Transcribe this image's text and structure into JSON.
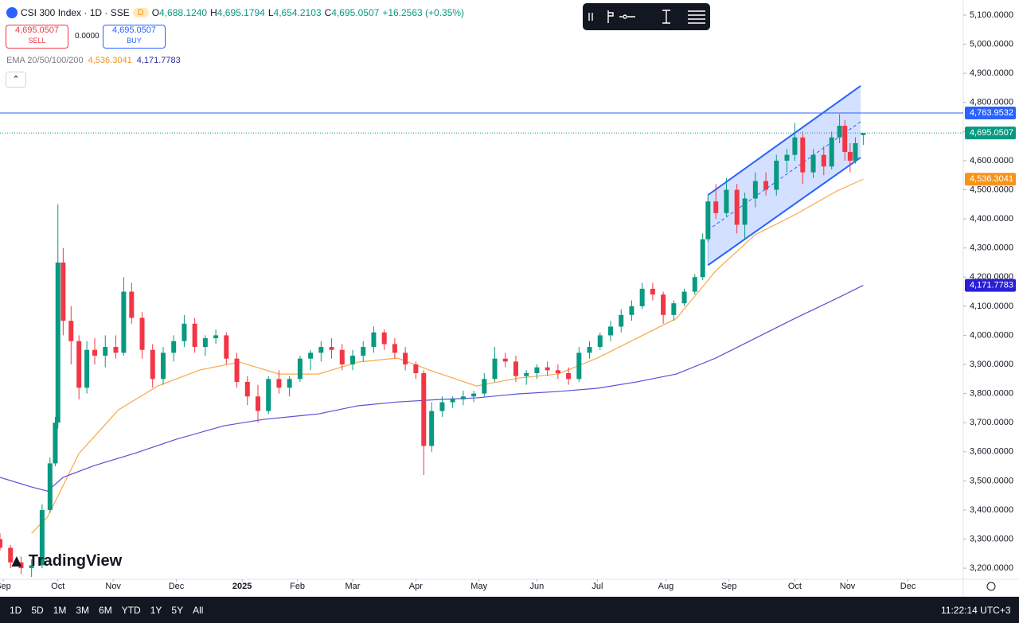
{
  "header": {
    "title": "CSI 300 Index · 1D · SSE",
    "badge": "D",
    "ohlc": [
      {
        "k": "O",
        "v": "4,688.1240"
      },
      {
        "k": "H",
        "v": "4,695.1794"
      },
      {
        "k": "L",
        "v": "4,654.2103"
      },
      {
        "k": "C",
        "v": "4,695.0507"
      }
    ],
    "change": "+16.2563 (+0.35%)"
  },
  "trade": {
    "sell_price": "4,695.0507",
    "sell": "SELL",
    "spread": "0.0000",
    "buy_price": "4,695.0507",
    "buy": "BUY"
  },
  "indicator": {
    "name": "EMA 20/50/100/200",
    "values": [
      {
        "text": "4,536.3041",
        "color": "#f7931a"
      },
      {
        "text": "4,171.7783",
        "color": "#2a2e9c"
      }
    ]
  },
  "logo": "TradingView",
  "toolbar": {
    "ranges": [
      "1D",
      "5D",
      "1M",
      "3M",
      "6M",
      "YTD",
      "1Y",
      "5Y",
      "All"
    ],
    "clock": "11:22:14 UTC+3"
  },
  "chart_data": {
    "type": "candlestick",
    "up_color": "#089981",
    "down_color": "#f23645",
    "xlim": [
      0,
      366
    ],
    "ylim": [
      3162,
      5152
    ],
    "xticks": [
      {
        "value": 1.2,
        "label": "Sep"
      },
      {
        "value": 22,
        "label": "Oct"
      },
      {
        "value": 43,
        "label": "Nov"
      },
      {
        "value": 67,
        "label": "Dec"
      },
      {
        "value": 92,
        "label": "2025"
      },
      {
        "value": 113,
        "label": "Feb"
      },
      {
        "value": 134,
        "label": "Mar"
      },
      {
        "value": 158,
        "label": "Apr"
      },
      {
        "value": 182,
        "label": "May"
      },
      {
        "value": 204,
        "label": "Jun"
      },
      {
        "value": 227,
        "label": "Jul"
      },
      {
        "value": 253,
        "label": "Aug"
      },
      {
        "value": 277,
        "label": "Sep"
      },
      {
        "value": 302,
        "label": "Oct"
      },
      {
        "value": 322,
        "label": "Nov"
      },
      {
        "value": 345,
        "label": "Dec"
      }
    ],
    "yticks": [
      {
        "value": 3200,
        "label": "3,200.0000"
      },
      {
        "value": 3300,
        "label": "3,300.0000"
      },
      {
        "value": 3400,
        "label": "3,400.0000"
      },
      {
        "value": 3500,
        "label": "3,500.0000"
      },
      {
        "value": 3600,
        "label": "3,600.0000"
      },
      {
        "value": 3700,
        "label": "3,700.0000"
      },
      {
        "value": 3800,
        "label": "3,800.0000"
      },
      {
        "value": 3900,
        "label": "3,900.0000"
      },
      {
        "value": 4000,
        "label": "4,000.0000"
      },
      {
        "value": 4100,
        "label": "4,100.0000"
      },
      {
        "value": 4200,
        "label": "4,200.0000"
      },
      {
        "value": 4300,
        "label": "4,300.0000"
      },
      {
        "value": 4400,
        "label": "4,400.0000"
      },
      {
        "value": 4500,
        "label": "4,500.0000"
      },
      {
        "value": 4600,
        "label": "4,600.0000"
      },
      {
        "value": 4700,
        "label": "4,700.0000"
      },
      {
        "value": 4800,
        "label": "4,800.0000"
      },
      {
        "value": 4900,
        "label": "4,900.0000"
      },
      {
        "value": 5000,
        "label": "5,000.0000"
      },
      {
        "value": 5100,
        "label": "5,100.0000"
      }
    ],
    "candles": [
      [
        0,
        3300,
        3320,
        3260,
        3270
      ],
      [
        4,
        3270,
        3280,
        3200,
        3220
      ],
      [
        8,
        3220,
        3240,
        3180,
        3200
      ],
      [
        12,
        3200,
        3230,
        3170,
        3210
      ],
      [
        16,
        3210,
        3420,
        3200,
        3400
      ],
      [
        19,
        3400,
        3580,
        3390,
        3560
      ],
      [
        21,
        3560,
        3720,
        3550,
        3700
      ],
      [
        22,
        3700,
        4450,
        3680,
        4250
      ],
      [
        24,
        4250,
        4300,
        4000,
        4050
      ],
      [
        27,
        4050,
        4100,
        3900,
        3980
      ],
      [
        30,
        3980,
        4000,
        3780,
        3820
      ],
      [
        33,
        3820,
        3980,
        3800,
        3950
      ],
      [
        36,
        3950,
        3990,
        3900,
        3930
      ],
      [
        40,
        3930,
        4000,
        3890,
        3960
      ],
      [
        44,
        3960,
        4000,
        3920,
        3940
      ],
      [
        47,
        3940,
        4200,
        3930,
        4150
      ],
      [
        50,
        4150,
        4180,
        4040,
        4060
      ],
      [
        54,
        4060,
        4080,
        3920,
        3950
      ],
      [
        58,
        3950,
        3970,
        3820,
        3850
      ],
      [
        62,
        3850,
        3960,
        3830,
        3940
      ],
      [
        66,
        3940,
        4000,
        3910,
        3980
      ],
      [
        70,
        3980,
        4070,
        3960,
        4040
      ],
      [
        74,
        4040,
        4060,
        3940,
        3960
      ],
      [
        78,
        3960,
        4000,
        3930,
        3990
      ],
      [
        82,
        3990,
        4020,
        3970,
        4000
      ],
      [
        86,
        4000,
        4010,
        3900,
        3920
      ],
      [
        90,
        3920,
        3940,
        3820,
        3840
      ],
      [
        94,
        3840,
        3860,
        3760,
        3790
      ],
      [
        98,
        3790,
        3830,
        3700,
        3740
      ],
      [
        102,
        3740,
        3860,
        3730,
        3850
      ],
      [
        106,
        3850,
        3880,
        3800,
        3820
      ],
      [
        110,
        3820,
        3860,
        3790,
        3850
      ],
      [
        114,
        3850,
        3930,
        3840,
        3920
      ],
      [
        118,
        3920,
        3950,
        3880,
        3940
      ],
      [
        122,
        3940,
        3980,
        3910,
        3960
      ],
      [
        126,
        3960,
        3990,
        3920,
        3950
      ],
      [
        130,
        3950,
        3970,
        3880,
        3900
      ],
      [
        134,
        3900,
        3950,
        3880,
        3930
      ],
      [
        138,
        3930,
        3980,
        3910,
        3960
      ],
      [
        142,
        3960,
        4030,
        3940,
        4010
      ],
      [
        146,
        4010,
        4020,
        3950,
        3970
      ],
      [
        150,
        3970,
        3990,
        3920,
        3940
      ],
      [
        154,
        3940,
        3960,
        3880,
        3900
      ],
      [
        158,
        3900,
        3910,
        3850,
        3870
      ],
      [
        161,
        3870,
        3880,
        3520,
        3620
      ],
      [
        164,
        3620,
        3770,
        3600,
        3740
      ],
      [
        168,
        3740,
        3790,
        3720,
        3770
      ],
      [
        172,
        3770,
        3790,
        3750,
        3780
      ],
      [
        176,
        3780,
        3810,
        3760,
        3790
      ],
      [
        180,
        3790,
        3810,
        3770,
        3800
      ],
      [
        184,
        3800,
        3870,
        3790,
        3850
      ],
      [
        188,
        3850,
        3960,
        3840,
        3920
      ],
      [
        192,
        3920,
        3940,
        3890,
        3910
      ],
      [
        196,
        3910,
        3930,
        3840,
        3860
      ],
      [
        200,
        3860,
        3880,
        3830,
        3870
      ],
      [
        204,
        3870,
        3900,
        3850,
        3890
      ],
      [
        208,
        3890,
        3910,
        3860,
        3880
      ],
      [
        212,
        3880,
        3900,
        3850,
        3870
      ],
      [
        216,
        3870,
        3890,
        3830,
        3850
      ],
      [
        220,
        3850,
        3960,
        3840,
        3940
      ],
      [
        224,
        3940,
        3980,
        3920,
        3960
      ],
      [
        228,
        3960,
        4010,
        3950,
        4000
      ],
      [
        232,
        4000,
        4050,
        3980,
        4030
      ],
      [
        236,
        4030,
        4090,
        4010,
        4070
      ],
      [
        240,
        4070,
        4120,
        4050,
        4100
      ],
      [
        244,
        4100,
        4180,
        4090,
        4160
      ],
      [
        248,
        4160,
        4180,
        4120,
        4140
      ],
      [
        252,
        4140,
        4150,
        4040,
        4070
      ],
      [
        256,
        4070,
        4120,
        4050,
        4110
      ],
      [
        260,
        4110,
        4160,
        4100,
        4150
      ],
      [
        264,
        4150,
        4210,
        4140,
        4200
      ],
      [
        267,
        4200,
        4350,
        4190,
        4330
      ],
      [
        269,
        4330,
        4480,
        4320,
        4460
      ],
      [
        272,
        4460,
        4520,
        4400,
        4420
      ],
      [
        276,
        4420,
        4540,
        4410,
        4500
      ],
      [
        280,
        4500,
        4520,
        4350,
        4380
      ],
      [
        283,
        4380,
        4490,
        4330,
        4470
      ],
      [
        287,
        4470,
        4560,
        4440,
        4530
      ],
      [
        291,
        4530,
        4560,
        4480,
        4500
      ],
      [
        295,
        4500,
        4620,
        4480,
        4600
      ],
      [
        299,
        4600,
        4640,
        4560,
        4620
      ],
      [
        302,
        4620,
        4730,
        4600,
        4680
      ],
      [
        305,
        4680,
        4700,
        4520,
        4560
      ],
      [
        309,
        4560,
        4640,
        4540,
        4620
      ],
      [
        313,
        4620,
        4650,
        4550,
        4580
      ],
      [
        316,
        4580,
        4700,
        4570,
        4680
      ],
      [
        319,
        4680,
        4760,
        4660,
        4720
      ],
      [
        321,
        4720,
        4740,
        4600,
        4630
      ],
      [
        323,
        4630,
        4660,
        4560,
        4600
      ],
      [
        325,
        4600,
        4680,
        4590,
        4660
      ],
      [
        328,
        4688.124,
        4695.1794,
        4654.2103,
        4695.0507
      ]
    ],
    "lines": [
      {
        "color": "#f7a94a",
        "x": [
          12,
          18,
          24,
          30,
          45,
          60,
          76,
          91,
          106,
          121,
          136,
          151,
          163,
          181,
          197,
          212,
          227,
          242,
          257,
          272,
          287,
          302,
          318,
          328
        ],
        "values": [
          3320,
          3375,
          3484,
          3594,
          3744,
          3826,
          3881,
          3908,
          3867,
          3867,
          3908,
          3922,
          3881,
          3826,
          3853,
          3867,
          3922,
          3990,
          4058,
          4222,
          4346,
          4414,
          4496,
          4536.3041
        ]
      },
      {
        "color": "#5b4fd6",
        "x": [
          0,
          12,
          18,
          24,
          36,
          51,
          67,
          85,
          100,
          121,
          136,
          151,
          166,
          181,
          197,
          212,
          227,
          242,
          257,
          272,
          287,
          302,
          318,
          328
        ],
        "values": [
          3512,
          3479,
          3465,
          3512,
          3553,
          3594,
          3643,
          3689,
          3711,
          3730,
          3758,
          3771,
          3779,
          3785,
          3799,
          3807,
          3818,
          3840,
          3867,
          3922,
          3990,
          4058,
          4127,
          4171.7783
        ]
      }
    ],
    "channel": {
      "x": [
        269,
        327
      ],
      "upper": [
        4482,
        4857
      ],
      "lower": [
        4241,
        4611
      ],
      "color": "#2962ff"
    },
    "price_tags": [
      {
        "value": 4763.9532,
        "label": "4,763.9532",
        "color": "#2962ff",
        "line": "solid"
      },
      {
        "value": 4695.0507,
        "label": "4,695.0507",
        "color": "#089981",
        "line": "dotted"
      },
      {
        "value": 4536.3041,
        "label": "4,536.3041",
        "color": "#f7931a",
        "line": null
      },
      {
        "value": 4171.7783,
        "label": "4,171.7783",
        "color": "#2a1fd6",
        "line": null
      }
    ]
  }
}
